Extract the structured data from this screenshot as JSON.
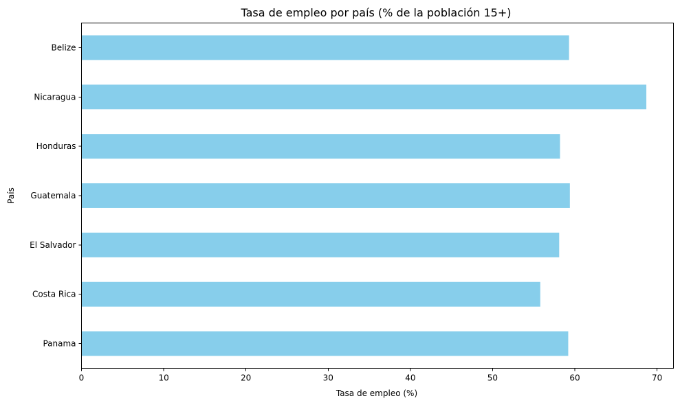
{
  "chart_data": {
    "type": "bar",
    "orientation": "horizontal",
    "title": "Tasa de empleo por país (% de la población 15+)",
    "xlabel": "Tasa de empleo (%)",
    "ylabel": "País",
    "categories": [
      "Panama",
      "Costa Rica",
      "El Salvador",
      "Guatemala",
      "Honduras",
      "Nicaragua",
      "Belize"
    ],
    "values": [
      59.2,
      55.8,
      58.1,
      59.4,
      58.2,
      68.7,
      59.3
    ],
    "xlim": [
      0,
      72
    ],
    "xticks": [
      0,
      10,
      20,
      30,
      40,
      50,
      60,
      70
    ],
    "bar_color": "#87CEEB",
    "grid": false,
    "legend": false
  }
}
